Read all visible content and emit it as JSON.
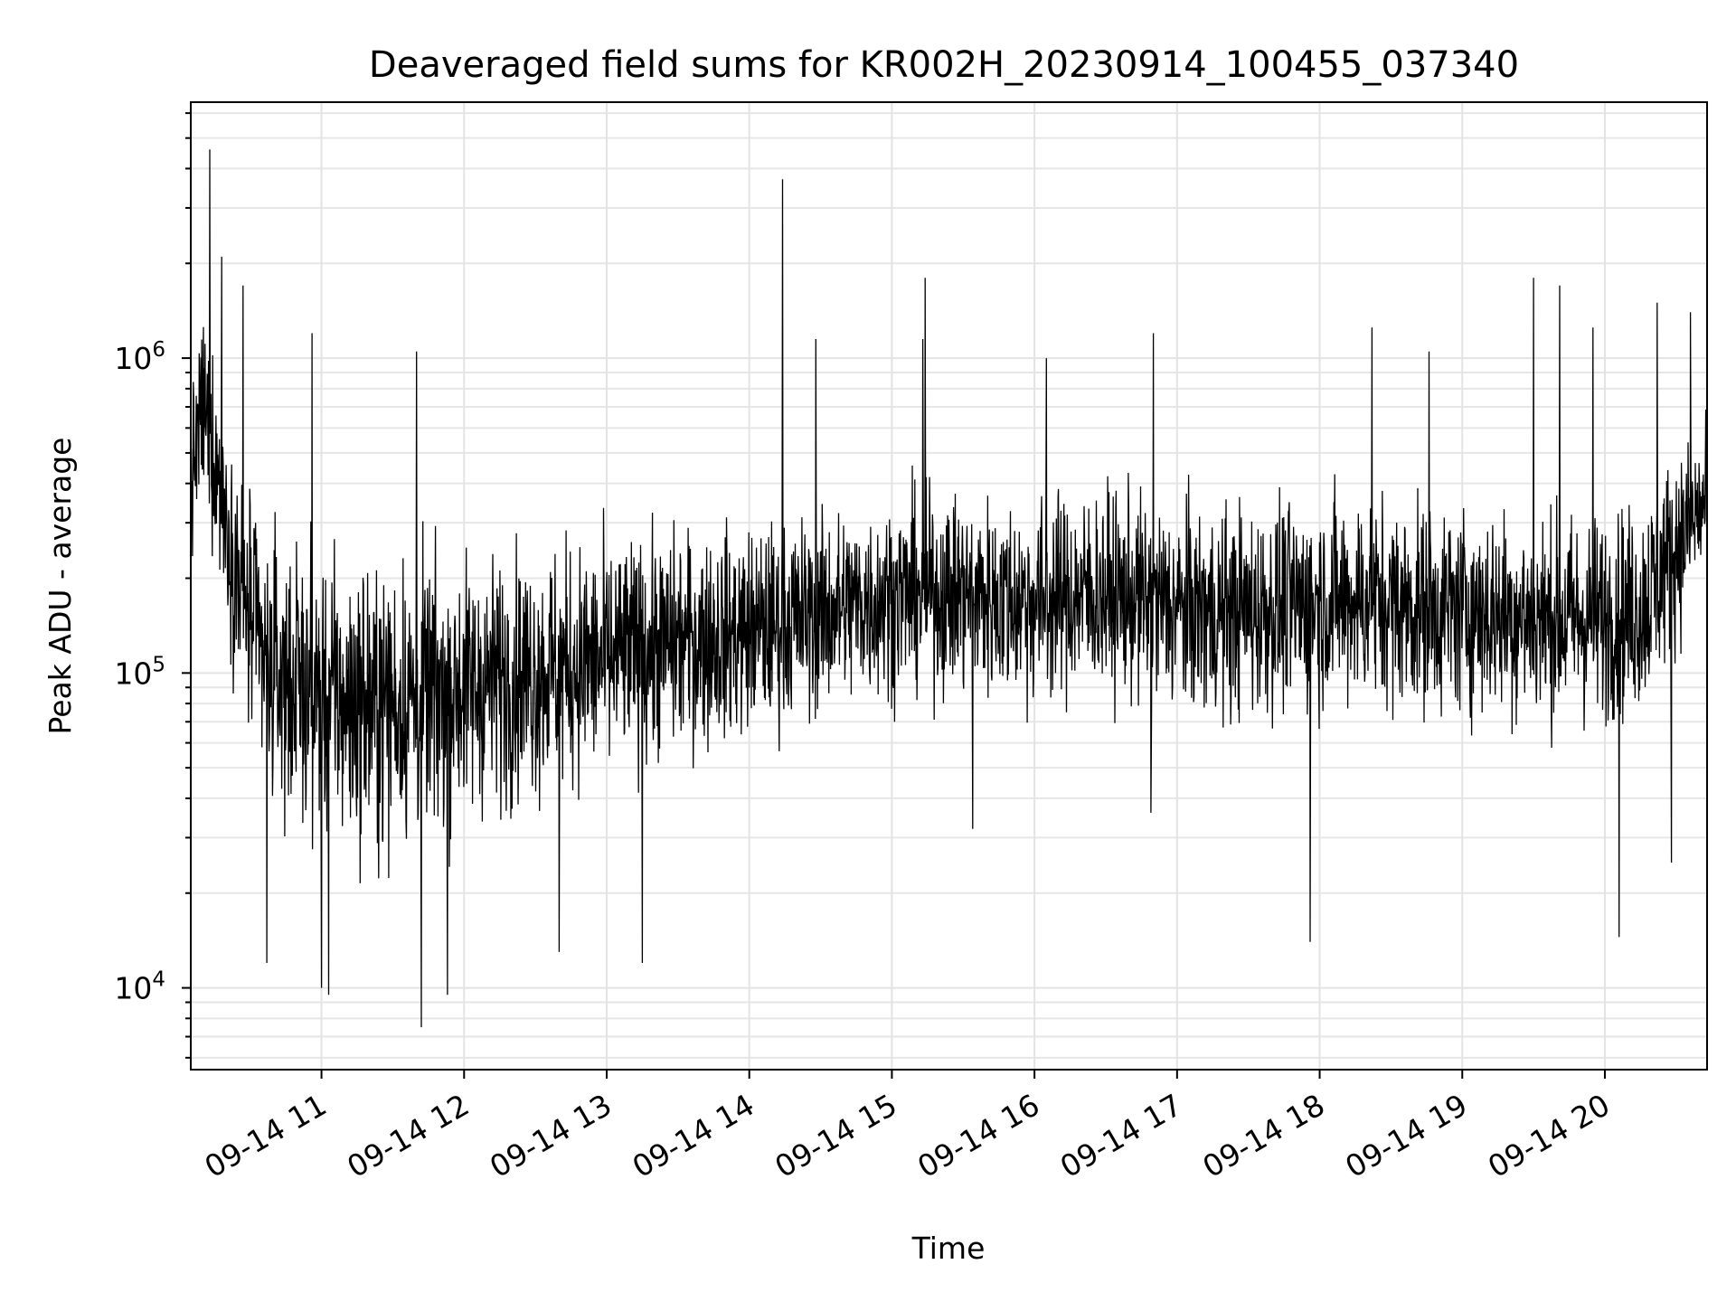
{
  "chart_data": {
    "type": "line",
    "title": "Deaveraged field sums for KR002H_20230914_100455_037340",
    "xlabel": "Time",
    "ylabel": "Peak ADU - average",
    "yscale": "log",
    "xlim": [
      "2023-09-14 10:05",
      "2023-09-14 20:43"
    ],
    "ylim": [
      5500,
      6500000
    ],
    "grid": "on (major and minor)",
    "x_ticks": [
      "09-14 11",
      "09-14 12",
      "09-14 13",
      "09-14 14",
      "09-14 15",
      "09-14 16",
      "09-14 17",
      "09-14 18",
      "09-14 19",
      "09-14 20"
    ],
    "y_ticks": [
      {
        "value": 10000,
        "base": "10",
        "exp": "4"
      },
      {
        "value": 100000,
        "base": "10",
        "exp": "5"
      },
      {
        "value": 1000000,
        "base": "10",
        "exp": "6"
      }
    ],
    "series": [
      {
        "color": "#000000",
        "x": [
          "2023-09-14 10:05",
          "2023-09-14 10:10",
          "2023-09-14 10:15",
          "2023-09-14 10:20",
          "2023-09-14 10:25",
          "2023-09-14 10:30",
          "2023-09-14 10:35",
          "2023-09-14 10:40",
          "2023-09-14 10:45",
          "2023-09-14 10:50",
          "2023-09-14 11:00",
          "2023-09-14 11:10",
          "2023-09-14 11:20",
          "2023-09-14 11:30",
          "2023-09-14 11:40",
          "2023-09-14 11:50",
          "2023-09-14 12:00",
          "2023-09-14 12:15",
          "2023-09-14 12:30",
          "2023-09-14 12:45",
          "2023-09-14 13:00",
          "2023-09-14 13:15",
          "2023-09-14 13:30",
          "2023-09-14 13:45",
          "2023-09-14 14:00",
          "2023-09-14 14:15",
          "2023-09-14 14:30",
          "2023-09-14 14:45",
          "2023-09-14 15:00",
          "2023-09-14 15:15",
          "2023-09-14 15:30",
          "2023-09-14 15:45",
          "2023-09-14 16:00",
          "2023-09-14 16:15",
          "2023-09-14 16:30",
          "2023-09-14 16:45",
          "2023-09-14 17:00",
          "2023-09-14 17:15",
          "2023-09-14 17:30",
          "2023-09-14 17:45",
          "2023-09-14 18:00",
          "2023-09-14 18:15",
          "2023-09-14 18:30",
          "2023-09-14 18:45",
          "2023-09-14 19:00",
          "2023-09-14 19:15",
          "2023-09-14 19:30",
          "2023-09-14 19:45",
          "2023-09-14 20:00",
          "2023-09-14 20:15",
          "2023-09-14 20:30",
          "2023-09-14 20:43"
        ],
        "y": [
          400000,
          700000,
          500000,
          300000,
          200000,
          150000,
          110000,
          100000,
          95000,
          90000,
          85000,
          80000,
          78000,
          80000,
          82000,
          85000,
          90000,
          95000,
          100000,
          105000,
          110000,
          118000,
          125000,
          130000,
          135000,
          145000,
          155000,
          165000,
          175000,
          180000,
          178000,
          172000,
          168000,
          175000,
          180000,
          170000,
          160000,
          155000,
          158000,
          162000,
          168000,
          172000,
          165000,
          160000,
          158000,
          155000,
          150000,
          148000,
          150000,
          160000,
          250000,
          350000
        ],
        "band_low": [
          200000,
          300000,
          200000,
          120000,
          60000,
          40000,
          30000,
          25000,
          25000,
          22000,
          20000,
          18000,
          16000,
          18000,
          20000,
          22000,
          25000,
          28000,
          30000,
          33000,
          36000,
          40000,
          44000,
          48000,
          52000,
          56000,
          60000,
          64000,
          68000,
          70000,
          68000,
          64000,
          60000,
          62000,
          64000,
          60000,
          56000,
          52000,
          54000,
          56000,
          58000,
          60000,
          58000,
          56000,
          55000,
          54000,
          52000,
          50000,
          52000,
          56000,
          100000,
          180000
        ],
        "band_high": [
          900000,
          1600000,
          1100000,
          600000,
          450000,
          380000,
          300000,
          280000,
          260000,
          250000,
          240000,
          230000,
          220000,
          230000,
          240000,
          250000,
          260000,
          270000,
          280000,
          290000,
          300000,
          310000,
          320000,
          330000,
          340000,
          350000,
          360000,
          380000,
          400000,
          420000,
          410000,
          400000,
          390000,
          400000,
          410000,
          390000,
          370000,
          360000,
          370000,
          380000,
          390000,
          400000,
          380000,
          370000,
          365000,
          360000,
          350000,
          345000,
          350000,
          380000,
          600000,
          750000
        ],
        "spikes": [
          {
            "x": "2023-09-14 10:13",
            "y": 4600000
          },
          {
            "x": "2023-09-14 10:18",
            "y": 2100000
          },
          {
            "x": "2023-09-14 10:27",
            "y": 1700000
          },
          {
            "x": "2023-09-14 10:56",
            "y": 1200000
          },
          {
            "x": "2023-09-14 11:40",
            "y": 1050000
          },
          {
            "x": "2023-09-14 14:14",
            "y": 3700000
          },
          {
            "x": "2023-09-14 14:28",
            "y": 1150000
          },
          {
            "x": "2023-09-14 15:14",
            "y": 1800000
          },
          {
            "x": "2023-09-14 15:13",
            "y": 1150000
          },
          {
            "x": "2023-09-14 16:05",
            "y": 1000000
          },
          {
            "x": "2023-09-14 16:50",
            "y": 1200000
          },
          {
            "x": "2023-09-14 18:22",
            "y": 1250000
          },
          {
            "x": "2023-09-14 18:46",
            "y": 1050000
          },
          {
            "x": "2023-09-14 19:30",
            "y": 1800000
          },
          {
            "x": "2023-09-14 19:41",
            "y": 1700000
          },
          {
            "x": "2023-09-14 19:55",
            "y": 1250000
          },
          {
            "x": "2023-09-14 20:22",
            "y": 1500000
          },
          {
            "x": "2023-09-14 20:36",
            "y": 1400000
          }
        ],
        "dips": [
          {
            "x": "2023-09-14 10:37",
            "y": 12000
          },
          {
            "x": "2023-09-14 11:00",
            "y": 10000
          },
          {
            "x": "2023-09-14 11:03",
            "y": 9500
          },
          {
            "x": "2023-09-14 11:42",
            "y": 7500
          },
          {
            "x": "2023-09-14 11:53",
            "y": 9500
          },
          {
            "x": "2023-09-14 12:40",
            "y": 13000
          },
          {
            "x": "2023-09-14 13:15",
            "y": 12000
          },
          {
            "x": "2023-09-14 17:56",
            "y": 14000
          },
          {
            "x": "2023-09-14 20:06",
            "y": 14500
          },
          {
            "x": "2023-09-14 15:34",
            "y": 32000
          },
          {
            "x": "2023-09-14 16:49",
            "y": 36000
          },
          {
            "x": "2023-09-14 20:28",
            "y": 25000
          }
        ]
      }
    ]
  }
}
